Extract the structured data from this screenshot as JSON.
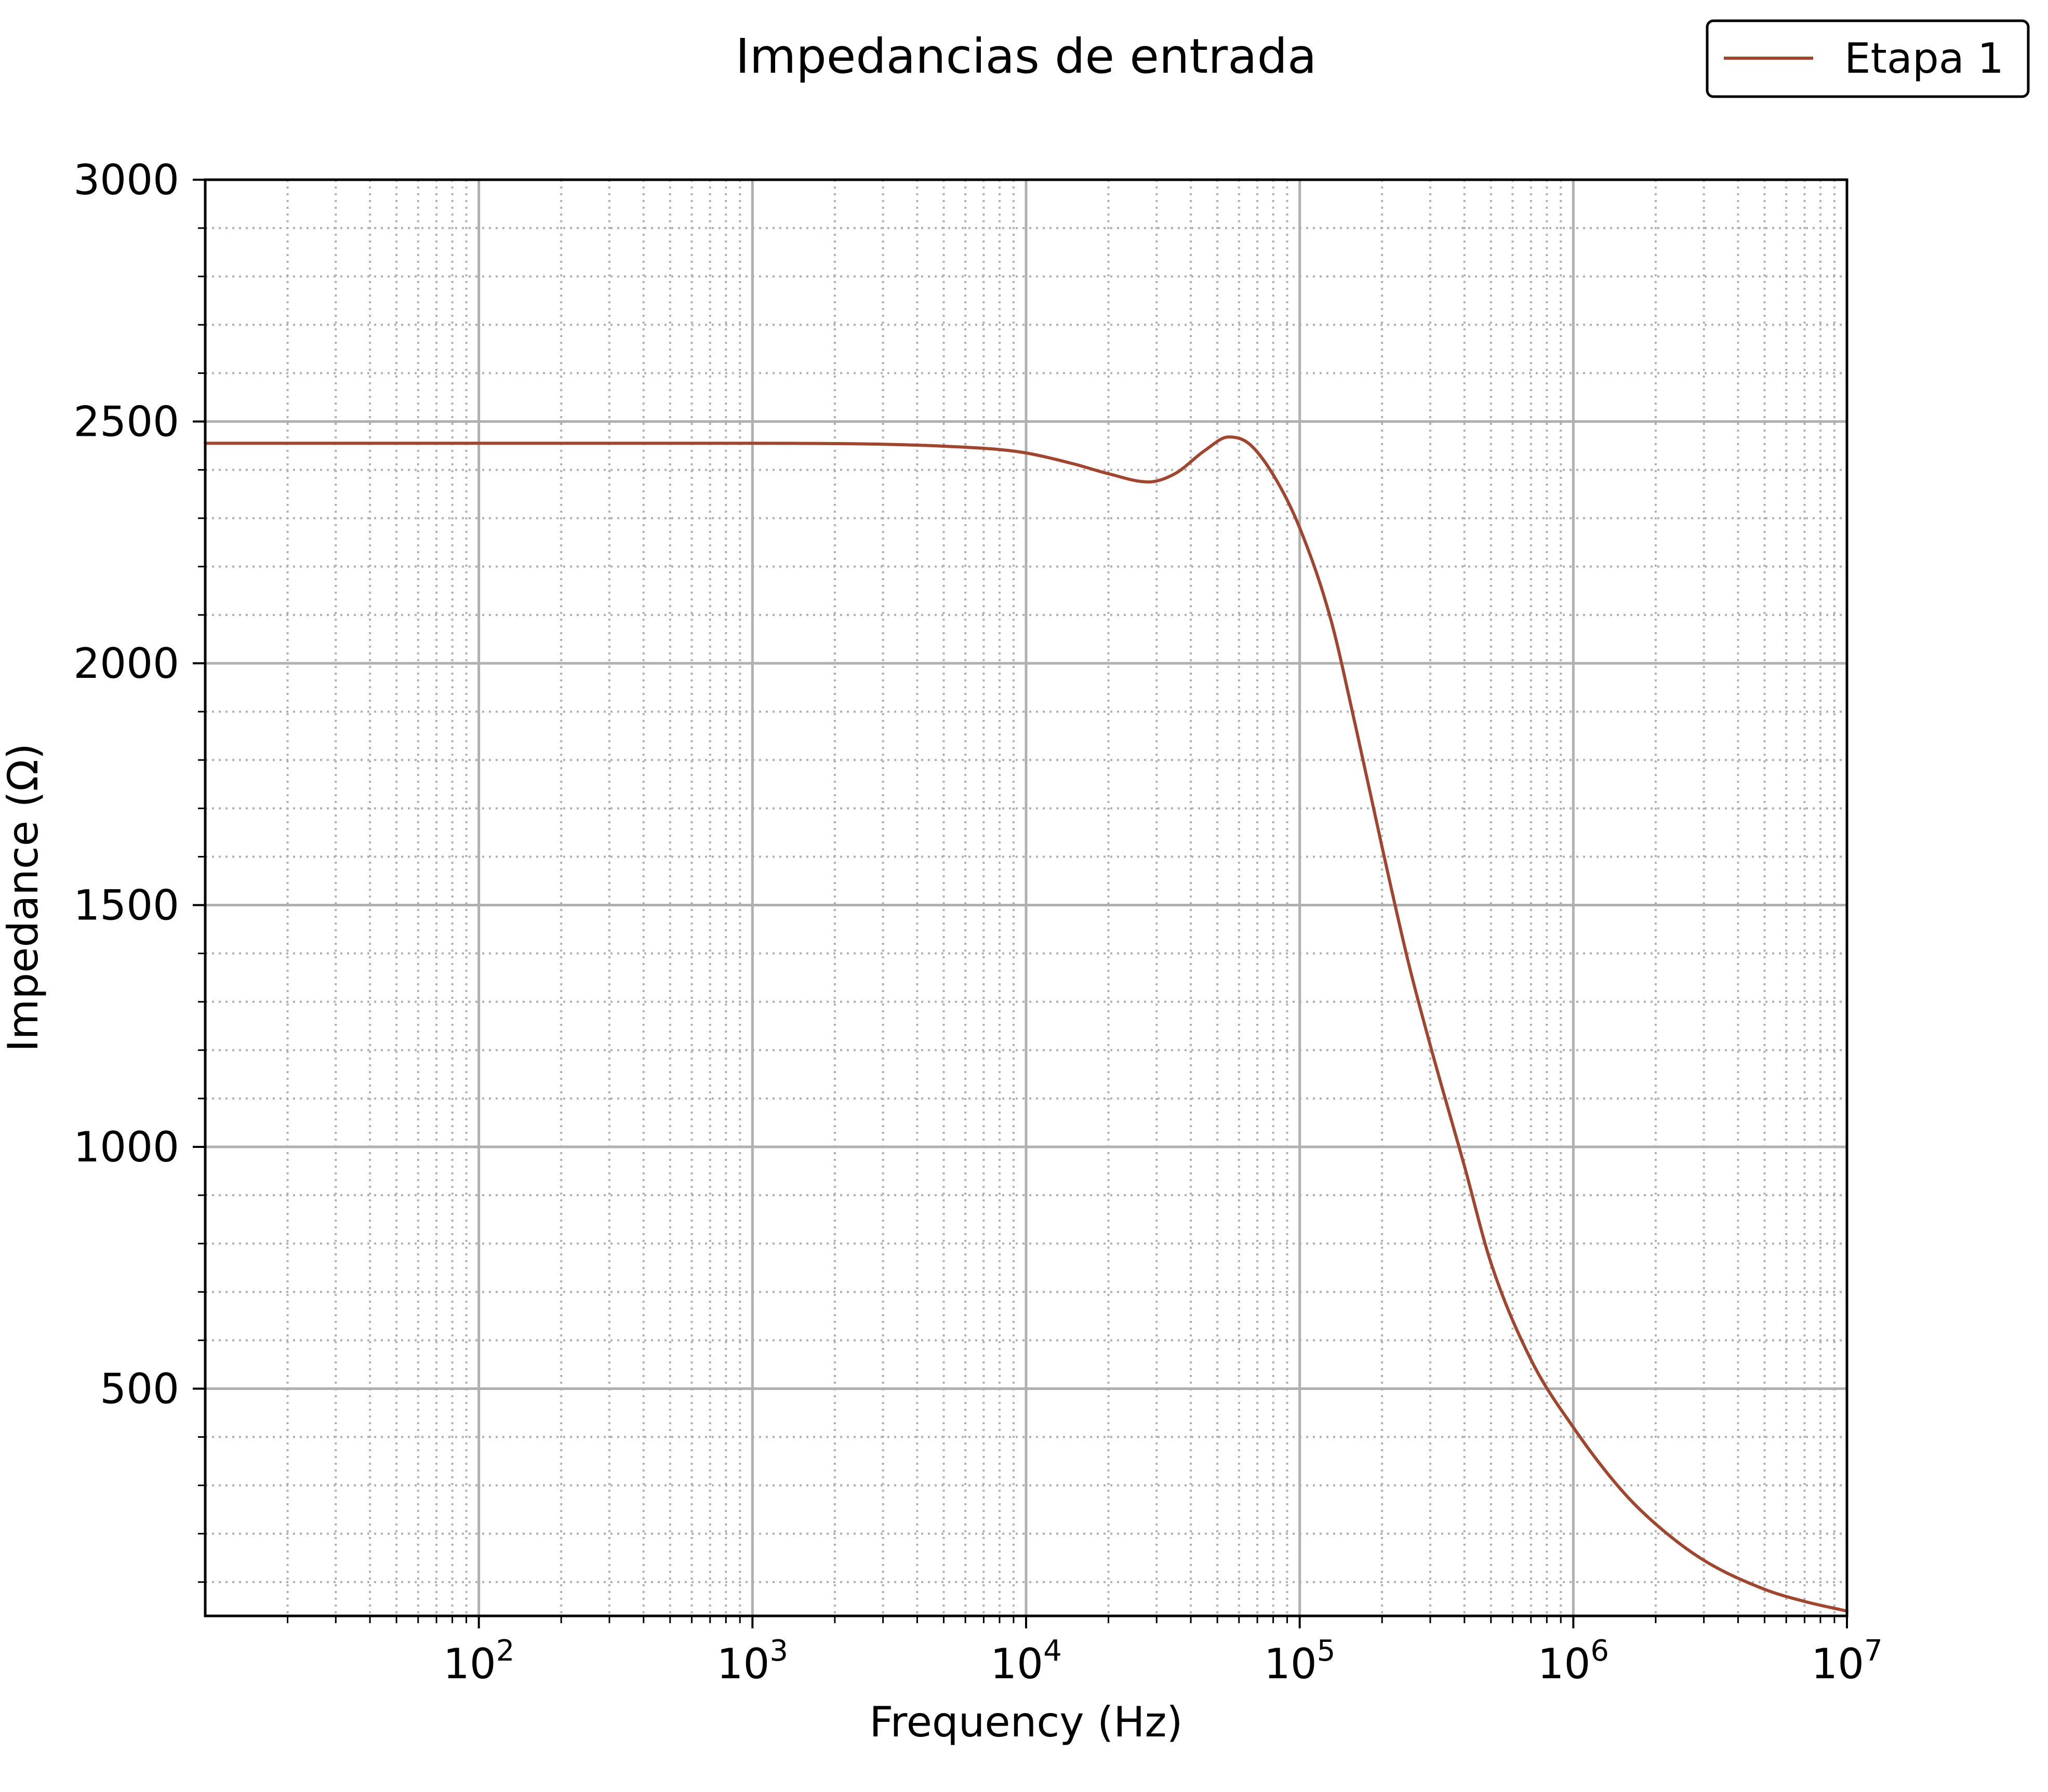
{
  "chart_data": {
    "type": "line",
    "title": "Impedancias de entrada",
    "xlabel": "Frequency (Hz)",
    "ylabel": "Impedance (Ω)",
    "xscale": "log",
    "xlim": [
      10,
      10000000
    ],
    "ylim": [
      30,
      3000
    ],
    "grid": "major solid, minor dotted",
    "legend_position": "top-right",
    "x_ticks": [
      {
        "value": 100,
        "base": "10",
        "exp": "2"
      },
      {
        "value": 1000,
        "base": "10",
        "exp": "3"
      },
      {
        "value": 10000,
        "base": "10",
        "exp": "4"
      },
      {
        "value": 100000,
        "base": "10",
        "exp": "5"
      },
      {
        "value": 1000000,
        "base": "10",
        "exp": "6"
      },
      {
        "value": 10000000,
        "base": "10",
        "exp": "7"
      }
    ],
    "y_ticks": [
      500,
      1000,
      1500,
      2000,
      2500,
      3000
    ],
    "series": [
      {
        "name": "Etapa 1",
        "color": "#a0462f",
        "x": [
          10,
          100,
          1000,
          3000,
          5000,
          8000,
          10000,
          15000,
          20000,
          28000,
          35000,
          45000,
          55000,
          65000,
          80000,
          100000,
          130000,
          160000,
          200000,
          250000,
          300000,
          400000,
          500000,
          700000,
          1000000,
          1500000,
          2000000,
          3000000,
          5000000,
          7000000,
          10000000
        ],
        "y": [
          2455,
          2455,
          2455,
          2453,
          2449,
          2442,
          2435,
          2412,
          2392,
          2375,
          2392,
          2440,
          2468,
          2455,
          2390,
          2280,
          2090,
          1870,
          1620,
          1380,
          1210,
          960,
          760,
          560,
          420,
          290,
          220,
          145,
          85,
          60,
          40
        ]
      }
    ]
  }
}
